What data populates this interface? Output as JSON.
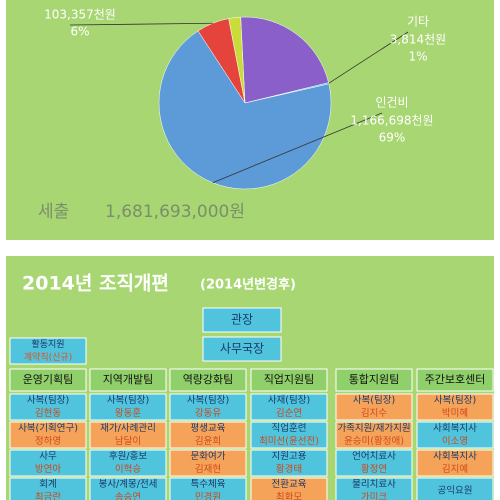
{
  "chart_data": {
    "type": "pie",
    "categories": [
      null,
      "기타",
      "인건비",
      null,
      null
    ],
    "values": [
      370000,
      3814,
      1166698,
      103357,
      37824
    ],
    "value_labels": [
      null,
      "3,814천원",
      "1,166,698천원",
      "103,357천원",
      null
    ],
    "percent_labels": [
      null,
      "1%",
      "69%",
      "6%",
      null
    ],
    "colors": [
      "#8b5fc9",
      "#3fbcd9",
      "#5d9bd8",
      "#e5443c",
      "#c9dd3a"
    ],
    "total_name": "세출",
    "total_text": "1,681,693,000원"
  },
  "org": {
    "title": "2014년 조직개편",
    "subtitle": "(2014년변경후)",
    "director": "관장",
    "secretary": "사무국장",
    "side": {
      "lines": [
        "활동지원",
        "계약직(신규)"
      ]
    },
    "columns": [
      {
        "team": "운영기획팀",
        "staff": [
          {
            "lines": [
              "사복(팀장)",
              "김현동"
            ],
            "accent": false
          },
          {
            "lines": [
              "사복(기획연구)",
              "정하영"
            ],
            "accent": true
          },
          {
            "lines": [
              "사무",
              "방연아"
            ],
            "accent": false
          },
          {
            "lines": [
              "회계",
              "최금란"
            ],
            "accent": false
          }
        ]
      },
      {
        "team": "지역개발팀",
        "staff": [
          {
            "lines": [
              "사복(팀장)",
              "왕동훈"
            ],
            "accent": false
          },
          {
            "lines": [
              "재가/사례관리",
              "남달이"
            ],
            "accent": true
          },
          {
            "lines": [
              "후원/홍보",
              "이혁승"
            ],
            "accent": false
          },
          {
            "lines": [
              "봉사/계몽/전세",
              "송승연"
            ],
            "accent": false
          }
        ]
      },
      {
        "team": "역량강화팀",
        "staff": [
          {
            "lines": [
              "사복(팀장)",
              "강동유"
            ],
            "accent": false
          },
          {
            "lines": [
              "평생교육",
              "김윤희"
            ],
            "accent": true
          },
          {
            "lines": [
              "문화여가",
              "김재현"
            ],
            "accent": true
          },
          {
            "lines": [
              "특수체육",
              "민경원"
            ],
            "accent": false
          }
        ]
      },
      {
        "team": "직업지원팀",
        "staff": [
          {
            "lines": [
              "사재(팀장)",
              "김순연"
            ],
            "accent": false
          },
          {
            "lines": [
              "직업훈련",
              "최미선(윤선전)"
            ],
            "accent": false
          },
          {
            "lines": [
              "지원고용",
              "황경태"
            ],
            "accent": false
          },
          {
            "lines": [
              "전환교육",
              "최화모"
            ],
            "accent": true
          }
        ]
      },
      {
        "team": "통합지원팀",
        "staff": [
          {
            "lines": [
              "사복(팀장)",
              "김지수"
            ],
            "accent": true
          },
          {
            "lines": [
              "가족지원/재가지원",
              "윤승미(황정애)"
            ],
            "accent": true
          },
          {
            "lines": [
              "언어치료사",
              "황정연"
            ],
            "accent": false
          },
          {
            "lines": [
              "물리치료사",
              "가미크"
            ],
            "accent": false
          }
        ]
      },
      {
        "team": "주간보호센터",
        "staff": [
          {
            "lines": [
              "사복(팀장)",
              "박미혜"
            ],
            "accent": true
          },
          {
            "lines": [
              "사회복지사",
              "이소영"
            ],
            "accent": false
          },
          {
            "lines": [
              "사회복지사",
              "김지예"
            ],
            "accent": true
          },
          {
            "lines": [
              "공익요원"
            ],
            "accent": false
          }
        ]
      }
    ]
  }
}
